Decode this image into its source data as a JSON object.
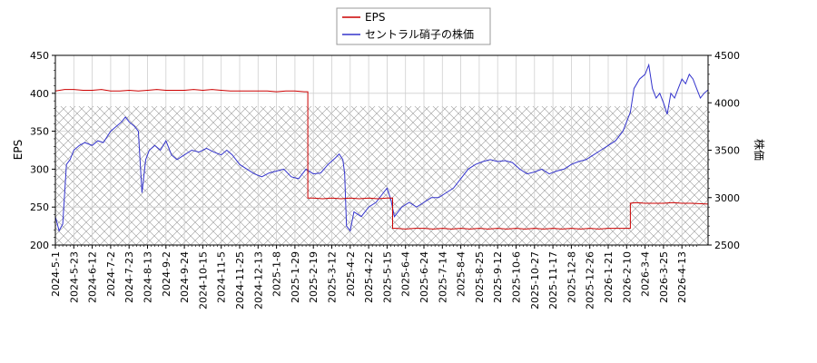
{
  "chart_data": {
    "type": "line",
    "title": "",
    "legend": {
      "placement": "top-center",
      "entries": [
        {
          "label": "EPS",
          "color": "#cc0000"
        },
        {
          "label": "セントラル硝子の株価",
          "color": "#3333cc"
        }
      ]
    },
    "y_left": {
      "label": "EPS",
      "ylim": [
        200,
        450
      ],
      "ticks": [
        "200",
        "250",
        "300",
        "350",
        "400",
        "450"
      ]
    },
    "y_right": {
      "label": "株価",
      "ylim": [
        2500,
        4500
      ],
      "ticks": [
        "2500",
        "3000",
        "3500",
        "4000",
        "4500"
      ]
    },
    "x_ticks": [
      "2024-5-1",
      "2024-5-23",
      "2024-6-12",
      "2024-7-2",
      "2024-7-23",
      "2024-8-13",
      "2024-9-2",
      "2024-9-24",
      "2024-10-15",
      "2024-11-5",
      "2024-11-25",
      "2024-12-13",
      "2025-1-8",
      "2025-1-29",
      "2025-2-19",
      "2025-3-12",
      "2025-4-2",
      "2025-4-22",
      "2025-5-15",
      "2025-6-4",
      "2025-6-24",
      "2025-7-14",
      "2025-8-4",
      "2025-8-25",
      "2025-9-12",
      "2025-10-6",
      "2025-10-27",
      "2025-11-17",
      "2025-12-8",
      "2025-12-26",
      "2026-1-21",
      "2026-2-10",
      "2026-3-4",
      "2026-3-25",
      "2026-4-13"
    ],
    "grid": true,
    "hatch_band": {
      "y_from": 200,
      "y_to": 383
    },
    "series": [
      {
        "name": "EPS",
        "axis": "left",
        "color": "#cc0000",
        "points": [
          [
            0,
            403
          ],
          [
            0.5,
            405
          ],
          [
            1,
            405
          ],
          [
            1.5,
            404
          ],
          [
            2,
            404
          ],
          [
            2.5,
            405
          ],
          [
            3,
            403
          ],
          [
            3.5,
            403
          ],
          [
            4,
            404
          ],
          [
            4.5,
            403
          ],
          [
            5,
            404
          ],
          [
            5.5,
            405
          ],
          [
            6,
            404
          ],
          [
            6.5,
            404
          ],
          [
            7,
            404
          ],
          [
            7.5,
            405
          ],
          [
            8,
            404
          ],
          [
            8.5,
            405
          ],
          [
            9,
            404
          ],
          [
            9.5,
            403
          ],
          [
            10,
            403
          ],
          [
            10.5,
            403
          ],
          [
            11,
            403
          ],
          [
            11.5,
            403
          ],
          [
            12,
            402
          ],
          [
            12.5,
            403
          ],
          [
            13,
            403
          ],
          [
            13.5,
            402
          ],
          [
            13.7,
            402
          ],
          [
            13.7,
            262
          ],
          [
            14,
            262
          ],
          [
            14.5,
            261
          ],
          [
            15,
            262
          ],
          [
            15.5,
            261
          ],
          [
            16,
            262
          ],
          [
            16.5,
            261
          ],
          [
            17,
            262
          ],
          [
            17.5,
            261
          ],
          [
            18,
            262
          ],
          [
            18.3,
            262
          ],
          [
            18.3,
            222
          ],
          [
            18.5,
            222
          ],
          [
            19,
            221
          ],
          [
            19.5,
            222
          ],
          [
            20,
            222
          ],
          [
            20.5,
            221
          ],
          [
            21,
            222
          ],
          [
            21.5,
            221
          ],
          [
            22,
            222
          ],
          [
            22.5,
            221
          ],
          [
            23,
            222
          ],
          [
            23.5,
            221
          ],
          [
            24,
            222
          ],
          [
            24.5,
            221
          ],
          [
            25,
            222
          ],
          [
            25.5,
            221
          ],
          [
            26,
            222
          ],
          [
            26.5,
            221
          ],
          [
            27,
            222
          ],
          [
            27.5,
            221
          ],
          [
            28,
            222
          ],
          [
            28.5,
            221
          ],
          [
            29,
            222
          ],
          [
            29.5,
            221
          ],
          [
            30,
            222
          ],
          [
            30.5,
            222
          ],
          [
            31,
            222
          ],
          [
            31.2,
            222
          ],
          [
            31.2,
            255
          ],
          [
            31.5,
            256
          ],
          [
            32,
            255
          ],
          [
            32.5,
            255
          ],
          [
            33,
            255
          ],
          [
            33.5,
            256
          ],
          [
            34,
            255
          ],
          [
            34.5,
            255
          ],
          [
            35.5,
            254
          ]
        ]
      },
      {
        "name": "セントラル硝子の株価",
        "axis": "right",
        "color": "#3333cc",
        "points": [
          [
            0,
            2800
          ],
          [
            0.2,
            2650
          ],
          [
            0.4,
            2720
          ],
          [
            0.6,
            3350
          ],
          [
            0.8,
            3400
          ],
          [
            1,
            3500
          ],
          [
            1.3,
            3550
          ],
          [
            1.6,
            3580
          ],
          [
            2,
            3550
          ],
          [
            2.3,
            3600
          ],
          [
            2.6,
            3580
          ],
          [
            3,
            3700
          ],
          [
            3.3,
            3750
          ],
          [
            3.6,
            3800
          ],
          [
            3.8,
            3850
          ],
          [
            4,
            3800
          ],
          [
            4.3,
            3750
          ],
          [
            4.5,
            3700
          ],
          [
            4.7,
            3050
          ],
          [
            4.9,
            3400
          ],
          [
            5.1,
            3500
          ],
          [
            5.4,
            3550
          ],
          [
            5.7,
            3500
          ],
          [
            6,
            3600
          ],
          [
            6.3,
            3450
          ],
          [
            6.6,
            3400
          ],
          [
            7,
            3450
          ],
          [
            7.4,
            3500
          ],
          [
            7.8,
            3480
          ],
          [
            8.2,
            3520
          ],
          [
            8.6,
            3480
          ],
          [
            9,
            3450
          ],
          [
            9.3,
            3500
          ],
          [
            9.6,
            3450
          ],
          [
            10,
            3350
          ],
          [
            10.4,
            3300
          ],
          [
            10.8,
            3250
          ],
          [
            11.2,
            3220
          ],
          [
            11.6,
            3260
          ],
          [
            12,
            3280
          ],
          [
            12.4,
            3300
          ],
          [
            12.8,
            3220
          ],
          [
            13.2,
            3200
          ],
          [
            13.6,
            3300
          ],
          [
            14,
            3250
          ],
          [
            14.4,
            3260
          ],
          [
            14.8,
            3350
          ],
          [
            15.2,
            3420
          ],
          [
            15.4,
            3460
          ],
          [
            15.6,
            3400
          ],
          [
            15.7,
            3250
          ],
          [
            15.8,
            2700
          ],
          [
            16,
            2650
          ],
          [
            16.2,
            2850
          ],
          [
            16.6,
            2800
          ],
          [
            17,
            2900
          ],
          [
            17.4,
            2950
          ],
          [
            17.8,
            3050
          ],
          [
            18,
            3100
          ],
          [
            18.2,
            2980
          ],
          [
            18.4,
            2800
          ],
          [
            18.8,
            2900
          ],
          [
            19.2,
            2950
          ],
          [
            19.6,
            2900
          ],
          [
            20,
            2950
          ],
          [
            20.4,
            3000
          ],
          [
            20.8,
            3000
          ],
          [
            21.2,
            3050
          ],
          [
            21.6,
            3100
          ],
          [
            22,
            3200
          ],
          [
            22.4,
            3300
          ],
          [
            22.8,
            3350
          ],
          [
            23.2,
            3380
          ],
          [
            23.6,
            3400
          ],
          [
            24,
            3380
          ],
          [
            24.4,
            3390
          ],
          [
            24.8,
            3370
          ],
          [
            25.2,
            3300
          ],
          [
            25.6,
            3250
          ],
          [
            26,
            3270
          ],
          [
            26.4,
            3300
          ],
          [
            26.8,
            3250
          ],
          [
            27.2,
            3280
          ],
          [
            27.6,
            3300
          ],
          [
            28,
            3350
          ],
          [
            28.4,
            3380
          ],
          [
            28.8,
            3400
          ],
          [
            29.2,
            3450
          ],
          [
            29.6,
            3500
          ],
          [
            30,
            3550
          ],
          [
            30.4,
            3600
          ],
          [
            30.8,
            3700
          ],
          [
            31,
            3800
          ],
          [
            31.2,
            3900
          ],
          [
            31.4,
            4150
          ],
          [
            31.7,
            4250
          ],
          [
            32,
            4300
          ],
          [
            32.2,
            4400
          ],
          [
            32.4,
            4150
          ],
          [
            32.6,
            4050
          ],
          [
            32.8,
            4100
          ],
          [
            33,
            4000
          ],
          [
            33.2,
            3880
          ],
          [
            33.4,
            4100
          ],
          [
            33.6,
            4050
          ],
          [
            33.8,
            4150
          ],
          [
            34,
            4250
          ],
          [
            34.2,
            4200
          ],
          [
            34.4,
            4300
          ],
          [
            34.6,
            4250
          ],
          [
            34.8,
            4150
          ],
          [
            35,
            4050
          ],
          [
            35.2,
            4100
          ],
          [
            35.5,
            4150
          ]
        ]
      }
    ]
  }
}
